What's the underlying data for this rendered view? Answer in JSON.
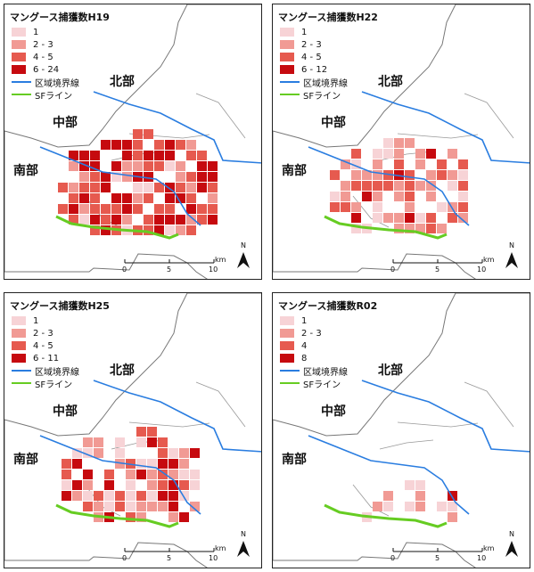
{
  "map_data": {
    "panels": [
      {
        "id": "H19",
        "title": "マングース捕獲数H19",
        "legend_classes": [
          {
            "label": "1",
            "color": "#f7d3d6"
          },
          {
            "label": "2 - 3",
            "color": "#f19a94"
          },
          {
            "label": "4 - 5",
            "color": "#e65a4f"
          },
          {
            "label": "6 - 24",
            "color": "#c60a0f"
          }
        ],
        "intensity": "high"
      },
      {
        "id": "H22",
        "title": "マングース捕獲数H22",
        "legend_classes": [
          {
            "label": "1",
            "color": "#f7d3d6"
          },
          {
            "label": "2 - 3",
            "color": "#f19a94"
          },
          {
            "label": "4 - 5",
            "color": "#e65a4f"
          },
          {
            "label": "6 - 12",
            "color": "#c60a0f"
          }
        ],
        "intensity": "medium"
      },
      {
        "id": "H25",
        "title": "マングース捕獲数H25",
        "legend_classes": [
          {
            "label": "1",
            "color": "#f7d3d6"
          },
          {
            "label": "2 - 3",
            "color": "#f19a94"
          },
          {
            "label": "4 - 5",
            "color": "#e65a4f"
          },
          {
            "label": "6 - 11",
            "color": "#c60a0f"
          }
        ],
        "intensity": "medium"
      },
      {
        "id": "R02",
        "title": "マングース捕獲数R02",
        "legend_classes": [
          {
            "label": "1",
            "color": "#f7d3d6"
          },
          {
            "label": "2 - 3",
            "color": "#f19a94"
          },
          {
            "label": "4",
            "color": "#e65a4f"
          },
          {
            "label": "8",
            "color": "#c60a0f"
          }
        ],
        "intensity": "low"
      }
    ],
    "line_legend": [
      {
        "label": "区域境界線",
        "color": "#2a7de0"
      },
      {
        "label": "SFライン",
        "color": "#66cc22"
      }
    ],
    "regions": {
      "north": "北部",
      "central": "中部",
      "south": "南部"
    },
    "scale": {
      "ticks": [
        "0",
        "5",
        "10"
      ],
      "unit": "km"
    },
    "north_arrow": "N"
  }
}
